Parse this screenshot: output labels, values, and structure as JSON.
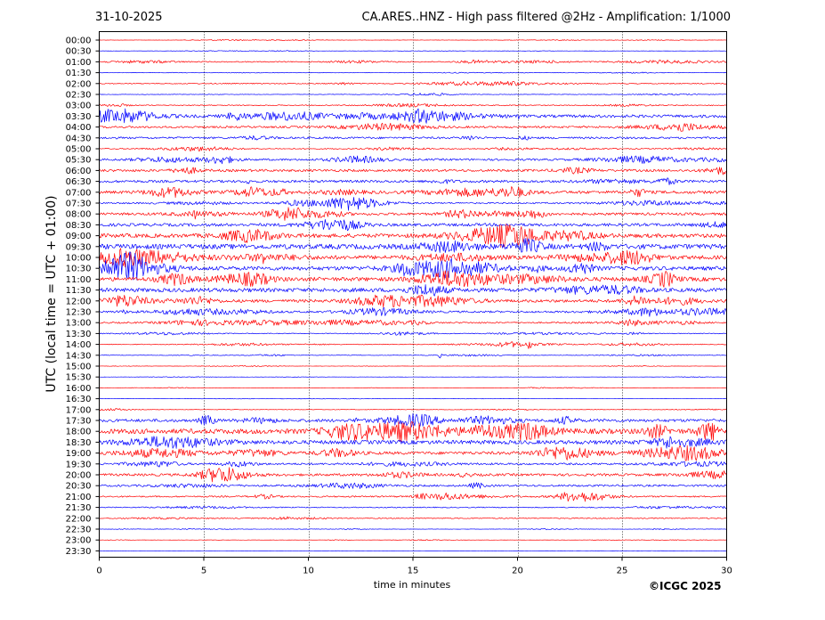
{
  "header": {
    "date": "31-10-2025",
    "title": "CA.ARES..HNZ - High pass filtered @2Hz - Amplification: 1/1000"
  },
  "footer": {
    "copyright": "©ICGC 2025"
  },
  "chart_data": {
    "type": "line",
    "subtype": "helicorder",
    "xlabel": "time in minutes",
    "ylabel": "UTC (local time = UTC + 01:00)",
    "xlim": [
      0,
      30
    ],
    "x_ticks": [
      0,
      5,
      10,
      15,
      20,
      25,
      30
    ],
    "grid": "vertical dotted lines at 5-minute ticks",
    "trace_colors": [
      "#ff0000",
      "#0000ff"
    ],
    "rows": [
      "00:00",
      "00:30",
      "01:00",
      "01:30",
      "02:00",
      "02:30",
      "03:00",
      "03:30",
      "04:00",
      "04:30",
      "05:00",
      "05:30",
      "06:00",
      "06:30",
      "07:00",
      "07:30",
      "08:00",
      "08:30",
      "09:00",
      "09:30",
      "10:00",
      "10:30",
      "11:00",
      "11:30",
      "12:00",
      "12:30",
      "13:00",
      "13:30",
      "14:00",
      "14:30",
      "15:00",
      "15:30",
      "16:00",
      "16:30",
      "17:00",
      "17:30",
      "18:00",
      "18:30",
      "19:00",
      "19:30",
      "20:00",
      "20:30",
      "21:00",
      "21:30",
      "22:00",
      "22:30",
      "23:00",
      "23:30"
    ],
    "noise_level": [
      0.25,
      0.2,
      1,
      0.3,
      1,
      0.5,
      1,
      3,
      2,
      2,
      1,
      2,
      2.5,
      2.5,
      3,
      1.5,
      2.5,
      3,
      4,
      5,
      4,
      4,
      4,
      4,
      3,
      2,
      1.5,
      0.8,
      0.8,
      0.5,
      0.2,
      0.2,
      0.2,
      0.2,
      0.5,
      3,
      5,
      4,
      3,
      2,
      2.5,
      2,
      1.5,
      1,
      1,
      0.3,
      0.2,
      0.1
    ],
    "events": [
      {
        "row": "03:30",
        "minute": 20,
        "amplitude": 2
      },
      {
        "row": "06:30",
        "minute": 7.1,
        "amplitude": 2
      },
      {
        "row": "08:00",
        "minute": 4.6,
        "amplitude": 2.5
      },
      {
        "row": "10:00",
        "minute": 7.8,
        "amplitude": 3
      },
      {
        "row": "12:30",
        "minute": 13.1,
        "amplitude": 1.5
      },
      {
        "row": "14:00",
        "minute": 20.6,
        "amplitude": 6
      },
      {
        "row": "14:30",
        "minute": 16.3,
        "amplitude": 1.2
      },
      {
        "row": "17:30",
        "minute": 12.3,
        "amplitude": 1.5
      }
    ]
  }
}
